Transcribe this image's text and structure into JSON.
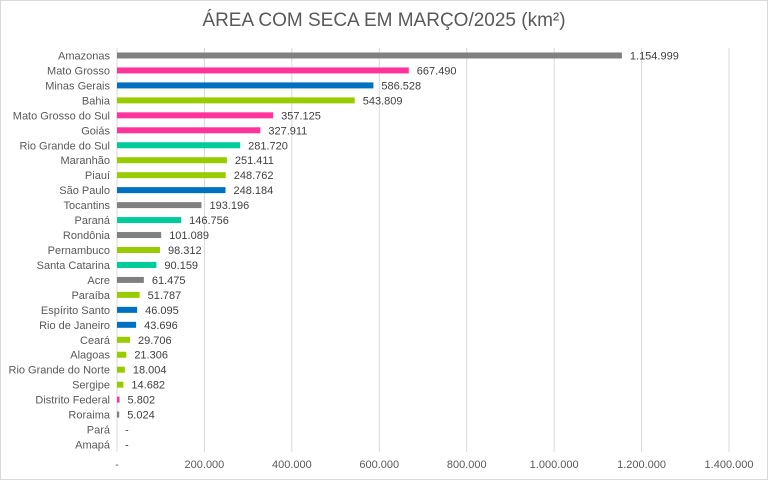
{
  "chart_data": {
    "type": "bar",
    "orientation": "horizontal",
    "title": "ÁREA COM SECA EM MARÇO/2025 (km²)",
    "xlabel": "",
    "ylabel": "",
    "xlim": [
      0,
      1400000
    ],
    "x_ticks": [
      {
        "value": 0,
        "label": "-"
      },
      {
        "value": 200000,
        "label": "200.000"
      },
      {
        "value": 400000,
        "label": "400.000"
      },
      {
        "value": 600000,
        "label": "600.000"
      },
      {
        "value": 800000,
        "label": "800.000"
      },
      {
        "value": 1000000,
        "label": "1.000.000"
      },
      {
        "value": 1200000,
        "label": "1.200.000"
      },
      {
        "value": 1400000,
        "label": "1.400.000"
      }
    ],
    "grid": true,
    "legend": "none",
    "categories": [
      "Amazonas",
      "Mato Grosso",
      "Minas Gerais",
      "Bahia",
      "Mato Grosso do Sul",
      "Goiás",
      "Rio Grande do Sul",
      "Maranhão",
      "Piauí",
      "São Paulo",
      "Tocantins",
      "Paraná",
      "Rondônia",
      "Pernambuco",
      "Santa Catarina",
      "Acre",
      "Paraíba",
      "Espírito Santo",
      "Rio de Janeiro",
      "Ceará",
      "Alagoas",
      "Rio Grande do Norte",
      "Sergipe",
      "Distrito Federal",
      "Roraima",
      "Pará",
      "Amapá"
    ],
    "values": [
      1154999,
      667490,
      586528,
      543809,
      357125,
      327911,
      281720,
      251411,
      248762,
      248184,
      193196,
      146756,
      101089,
      98312,
      90159,
      61475,
      51787,
      46095,
      43696,
      29706,
      21306,
      18004,
      14682,
      5802,
      5024,
      0,
      0
    ],
    "value_labels": [
      "1.154.999",
      "667.490",
      "586.528",
      "543.809",
      "357.125",
      "327.911",
      "281.720",
      "251.411",
      "248.762",
      "248.184",
      "193.196",
      "146.756",
      "101.089",
      "98.312",
      "90.159",
      "61.475",
      "51.787",
      "46.095",
      "43.696",
      "29.706",
      "21.306",
      "18.004",
      "14.682",
      "5.802",
      "5.024",
      "-",
      "-"
    ],
    "bar_colors": [
      "#808080",
      "#ff3399",
      "#0070c0",
      "#99cc00",
      "#ff3399",
      "#ff3399",
      "#00cc99",
      "#99cc00",
      "#99cc00",
      "#0070c0",
      "#808080",
      "#00cc99",
      "#808080",
      "#99cc00",
      "#00cc99",
      "#808080",
      "#99cc00",
      "#0070c0",
      "#0070c0",
      "#99cc00",
      "#99cc00",
      "#99cc00",
      "#99cc00",
      "#ff3399",
      "#808080",
      "#808080",
      "#808080"
    ]
  }
}
